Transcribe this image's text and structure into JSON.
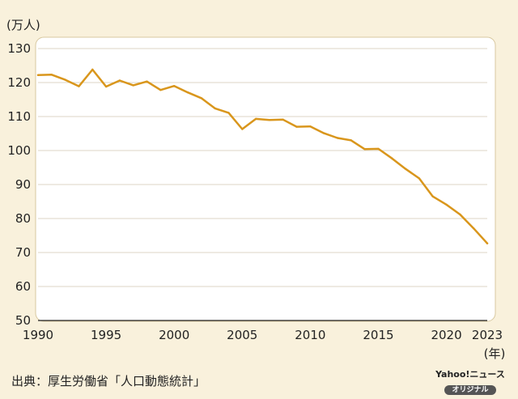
{
  "chart_data": {
    "type": "line",
    "ylabel": "(万人)",
    "xlabel": "(年)",
    "ylim": [
      50,
      130
    ],
    "xlim": [
      1990,
      2023
    ],
    "y_ticks": [
      50,
      60,
      70,
      80,
      90,
      100,
      110,
      120,
      130
    ],
    "x_ticks": [
      1990,
      1995,
      2000,
      2005,
      2010,
      2015,
      2020,
      2023
    ],
    "grid": true,
    "line_color": "#d9961c",
    "series": [
      {
        "x": [
          1990,
          1991,
          1992,
          1993,
          1994,
          1995,
          1996,
          1997,
          1998,
          1999,
          2000,
          2001,
          2002,
          2003,
          2004,
          2005,
          2006,
          2007,
          2008,
          2009,
          2010,
          2011,
          2012,
          2013,
          2014,
          2015,
          2016,
          2017,
          2018,
          2019,
          2020,
          2021,
          2022,
          2023
        ],
        "values": [
          122.2,
          122.3,
          120.8,
          118.9,
          123.8,
          118.8,
          120.6,
          119.2,
          120.3,
          117.8,
          119.0,
          117.1,
          115.4,
          112.4,
          111.1,
          106.3,
          109.3,
          109.0,
          109.1,
          107.0,
          107.1,
          105.1,
          103.7,
          103.0,
          100.4,
          100.5,
          97.7,
          94.6,
          91.8,
          86.5,
          84.1,
          81.2,
          77.1,
          72.7
        ]
      }
    ]
  },
  "source": "出典：厚生労働省「人口動態統計」",
  "logo": {
    "main": "Yahoo!ニュース",
    "sub": "オリジナル"
  }
}
